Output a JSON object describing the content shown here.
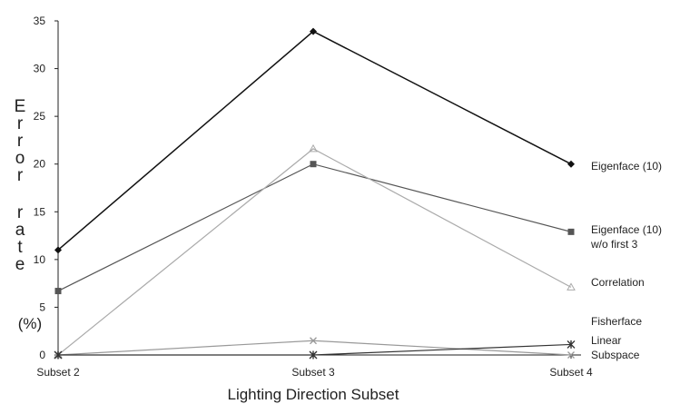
{
  "chart_data": {
    "type": "line",
    "categories": [
      "Subset 2",
      "Subset 3",
      "Subset 4"
    ],
    "xlabel": "Lighting Direction Subset",
    "ylabel_letters": [
      "E",
      "r",
      "r",
      "o",
      "r",
      "r",
      "a",
      "t",
      "e"
    ],
    "ylabel_unit": "(%)",
    "ylim": [
      0,
      35
    ],
    "yticks": [
      0,
      5,
      10,
      15,
      20,
      25,
      30,
      35
    ],
    "grid": false,
    "series": [
      {
        "name": "Eigenface (10)",
        "label_lines": [
          "Eigenface (10)"
        ],
        "values": [
          11.0,
          33.9,
          20.0
        ],
        "color": "#111111",
        "marker": "diamond"
      },
      {
        "name": "Eigenface (10) w/o first 3",
        "label_lines": [
          "Eigenface (10)",
          "w/o first 3"
        ],
        "values": [
          6.7,
          20.0,
          12.9
        ],
        "color": "#555555",
        "marker": "square"
      },
      {
        "name": "Correlation",
        "label_lines": [
          "Correlation"
        ],
        "values": [
          0.0,
          21.6,
          7.1
        ],
        "color": "#aaaaaa",
        "marker": "triangle"
      },
      {
        "name": "Linear Subspace",
        "label_lines": [
          "Linear",
          "Subspace"
        ],
        "values": [
          0.0,
          1.5,
          0.0
        ],
        "color": "#999999",
        "marker": "x"
      },
      {
        "name": "Fisherface",
        "label_lines": [
          "Fisherface"
        ],
        "values": [
          0.0,
          0.0,
          1.1
        ],
        "color": "#333333",
        "marker": "star"
      }
    ]
  }
}
